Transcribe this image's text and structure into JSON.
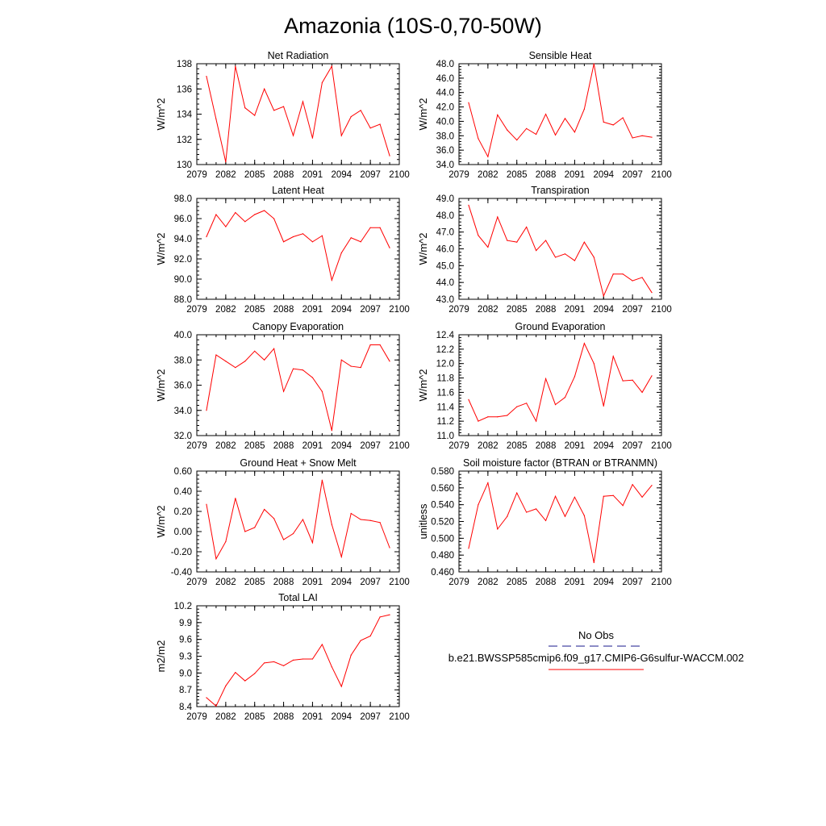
{
  "figure": {
    "title": "Amazonia (10S-0,70-50W)",
    "legend": {
      "entries": [
        {
          "label": "No Obs",
          "color": "#1a1a8c",
          "style": "dashed"
        },
        {
          "label": "b.e21.BWSSP585cmip6.f09_g17.CMIP6-G6sulfur-WACCM.002",
          "color": "#ff0000",
          "style": "solid"
        }
      ]
    }
  },
  "chart_data": [
    {
      "type": "line",
      "title": "Net Radiation",
      "ylabel": "W/m^2",
      "xlim": [
        2079,
        2100
      ],
      "xticks": [
        "2079",
        "2082",
        "2085",
        "2088",
        "2091",
        "2094",
        "2097",
        "2100"
      ],
      "ylim": [
        130,
        138
      ],
      "yticks": [
        "130",
        "132",
        "134",
        "136",
        "138"
      ],
      "x": [
        2080,
        2081,
        2082,
        2083,
        2084,
        2085,
        2086,
        2087,
        2088,
        2089,
        2090,
        2091,
        2092,
        2093,
        2094,
        2095,
        2096,
        2097,
        2098,
        2099
      ],
      "series": [
        {
          "name": "b.e21.BWSSP585cmip6.f09_g17.CMIP6-G6sulfur-WACCM.002",
          "color": "#ff0000",
          "values": [
            137.0,
            133.6,
            130.2,
            137.8,
            134.5,
            133.9,
            136.0,
            134.3,
            134.6,
            132.3,
            135.0,
            132.1,
            136.5,
            137.8,
            132.3,
            133.8,
            134.3,
            132.9,
            133.2,
            130.7
          ]
        }
      ]
    },
    {
      "type": "line",
      "title": "Sensible Heat",
      "ylabel": "W/m^2",
      "xlim": [
        2079,
        2100
      ],
      "xticks": [
        "2079",
        "2082",
        "2085",
        "2088",
        "2091",
        "2094",
        "2097",
        "2100"
      ],
      "ylim": [
        34,
        48
      ],
      "yticks": [
        "34.0",
        "36.0",
        "38.0",
        "40.0",
        "42.0",
        "44.0",
        "46.0",
        "48.0"
      ],
      "x": [
        2080,
        2081,
        2082,
        2083,
        2084,
        2085,
        2086,
        2087,
        2088,
        2089,
        2090,
        2091,
        2092,
        2093,
        2094,
        2095,
        2096,
        2097,
        2098,
        2099
      ],
      "series": [
        {
          "name": "b.e21.BWSSP585cmip6.f09_g17.CMIP6-G6sulfur-WACCM.002",
          "color": "#ff0000",
          "values": [
            42.6,
            37.6,
            35.1,
            40.9,
            38.8,
            37.4,
            39.0,
            38.2,
            41.0,
            38.1,
            40.4,
            38.5,
            41.7,
            48.0,
            39.9,
            39.5,
            40.5,
            37.7,
            38.0,
            37.8
          ]
        }
      ]
    },
    {
      "type": "line",
      "title": "Latent Heat",
      "ylabel": "W/m^2",
      "xlim": [
        2079,
        2100
      ],
      "xticks": [
        "2079",
        "2082",
        "2085",
        "2088",
        "2091",
        "2094",
        "2097",
        "2100"
      ],
      "ylim": [
        88,
        98
      ],
      "yticks": [
        "88.0",
        "90.0",
        "92.0",
        "94.0",
        "96.0",
        "98.0"
      ],
      "x": [
        2080,
        2081,
        2082,
        2083,
        2084,
        2085,
        2086,
        2087,
        2088,
        2089,
        2090,
        2091,
        2092,
        2093,
        2094,
        2095,
        2096,
        2097,
        2098,
        2099
      ],
      "series": [
        {
          "name": "b.e21.BWSSP585cmip6.f09_g17.CMIP6-G6sulfur-WACCM.002",
          "color": "#ff0000",
          "values": [
            94.2,
            96.4,
            95.2,
            96.6,
            95.7,
            96.4,
            96.8,
            96.0,
            93.7,
            94.2,
            94.5,
            93.7,
            94.3,
            89.9,
            92.6,
            94.1,
            93.7,
            95.1,
            95.1,
            93.1
          ]
        }
      ]
    },
    {
      "type": "line",
      "title": "Transpiration",
      "ylabel": "W/m^2",
      "xlim": [
        2079,
        2100
      ],
      "xticks": [
        "2079",
        "2082",
        "2085",
        "2088",
        "2091",
        "2094",
        "2097",
        "2100"
      ],
      "ylim": [
        43,
        49
      ],
      "yticks": [
        "43.0",
        "44.0",
        "45.0",
        "46.0",
        "47.0",
        "48.0",
        "49.0"
      ],
      "x": [
        2080,
        2081,
        2082,
        2083,
        2084,
        2085,
        2086,
        2087,
        2088,
        2089,
        2090,
        2091,
        2092,
        2093,
        2094,
        2095,
        2096,
        2097,
        2098,
        2099
      ],
      "series": [
        {
          "name": "b.e21.BWSSP585cmip6.f09_g17.CMIP6-G6sulfur-WACCM.002",
          "color": "#ff0000",
          "values": [
            48.6,
            46.8,
            46.1,
            47.9,
            46.5,
            46.4,
            47.3,
            45.9,
            46.5,
            45.5,
            45.7,
            45.3,
            46.4,
            45.5,
            43.2,
            44.5,
            44.5,
            44.1,
            44.3,
            43.4
          ]
        }
      ]
    },
    {
      "type": "line",
      "title": "Canopy Evaporation",
      "ylabel": "W/m^2",
      "xlim": [
        2079,
        2100
      ],
      "xticks": [
        "2079",
        "2082",
        "2085",
        "2088",
        "2091",
        "2094",
        "2097",
        "2100"
      ],
      "ylim": [
        32,
        40
      ],
      "yticks": [
        "32.0",
        "34.0",
        "36.0",
        "38.0",
        "40.0"
      ],
      "x": [
        2080,
        2081,
        2082,
        2083,
        2084,
        2085,
        2086,
        2087,
        2088,
        2089,
        2090,
        2091,
        2092,
        2093,
        2094,
        2095,
        2096,
        2097,
        2098,
        2099
      ],
      "series": [
        {
          "name": "b.e21.BWSSP585cmip6.f09_g17.CMIP6-G6sulfur-WACCM.002",
          "color": "#ff0000",
          "values": [
            34.0,
            38.4,
            37.9,
            37.4,
            37.9,
            38.7,
            38.0,
            38.9,
            35.5,
            37.3,
            37.2,
            36.6,
            35.5,
            32.4,
            38.0,
            37.5,
            37.4,
            39.2,
            39.2,
            37.9
          ]
        }
      ]
    },
    {
      "type": "line",
      "title": "Ground Evaporation",
      "ylabel": "W/m^2",
      "xlim": [
        2079,
        2100
      ],
      "xticks": [
        "2079",
        "2082",
        "2085",
        "2088",
        "2091",
        "2094",
        "2097",
        "2100"
      ],
      "ylim": [
        11.0,
        12.4
      ],
      "yticks": [
        "11.0",
        "11.2",
        "11.4",
        "11.6",
        "11.8",
        "12.0",
        "12.2",
        "12.4"
      ],
      "x": [
        2080,
        2081,
        2082,
        2083,
        2084,
        2085,
        2086,
        2087,
        2088,
        2089,
        2090,
        2091,
        2092,
        2093,
        2094,
        2095,
        2096,
        2097,
        2098,
        2099
      ],
      "series": [
        {
          "name": "b.e21.BWSSP585cmip6.f09_g17.CMIP6-G6sulfur-WACCM.002",
          "color": "#ff0000",
          "values": [
            11.5,
            11.2,
            11.26,
            11.26,
            11.28,
            11.4,
            11.45,
            11.2,
            11.79,
            11.43,
            11.53,
            11.82,
            12.28,
            12.0,
            11.41,
            12.1,
            11.76,
            11.77,
            11.6,
            11.83
          ]
        }
      ]
    },
    {
      "type": "line",
      "title": "Ground Heat + Snow Melt",
      "ylabel": "W/m^2",
      "xlim": [
        2079,
        2100
      ],
      "xticks": [
        "2079",
        "2082",
        "2085",
        "2088",
        "2091",
        "2094",
        "2097",
        "2100"
      ],
      "ylim": [
        -0.4,
        0.6
      ],
      "yticks": [
        "-0.40",
        "-0.20",
        "0.00",
        "0.20",
        "0.40",
        "0.60"
      ],
      "x": [
        2080,
        2081,
        2082,
        2083,
        2084,
        2085,
        2086,
        2087,
        2088,
        2089,
        2090,
        2091,
        2092,
        2093,
        2094,
        2095,
        2096,
        2097,
        2098,
        2099
      ],
      "series": [
        {
          "name": "b.e21.BWSSP585cmip6.f09_g17.CMIP6-G6sulfur-WACCM.002",
          "color": "#ff0000",
          "values": [
            0.27,
            -0.27,
            -0.1,
            0.33,
            0.0,
            0.04,
            0.22,
            0.13,
            -0.08,
            -0.02,
            0.12,
            -0.11,
            0.51,
            0.07,
            -0.25,
            0.18,
            0.12,
            0.11,
            0.09,
            -0.16
          ]
        }
      ]
    },
    {
      "type": "line",
      "title": "Soil moisture factor (BTRAN or BTRANMN)",
      "ylabel": "unitless",
      "xlim": [
        2079,
        2100
      ],
      "xticks": [
        "2079",
        "2082",
        "2085",
        "2088",
        "2091",
        "2094",
        "2097",
        "2100"
      ],
      "ylim": [
        0.46,
        0.58
      ],
      "yticks": [
        "0.460",
        "0.480",
        "0.500",
        "0.520",
        "0.540",
        "0.560",
        "0.580"
      ],
      "x": [
        2080,
        2081,
        2082,
        2083,
        2084,
        2085,
        2086,
        2087,
        2088,
        2089,
        2090,
        2091,
        2092,
        2093,
        2094,
        2095,
        2096,
        2097,
        2098,
        2099
      ],
      "series": [
        {
          "name": "b.e21.BWSSP585cmip6.f09_g17.CMIP6-G6sulfur-WACCM.002",
          "color": "#ff0000",
          "values": [
            0.488,
            0.54,
            0.566,
            0.511,
            0.526,
            0.554,
            0.531,
            0.535,
            0.521,
            0.55,
            0.526,
            0.549,
            0.527,
            0.471,
            0.55,
            0.551,
            0.539,
            0.564,
            0.549,
            0.563
          ]
        }
      ]
    },
    {
      "type": "line",
      "title": "Total LAI",
      "ylabel": "m2/m2",
      "xlim": [
        2079,
        2100
      ],
      "xticks": [
        "2079",
        "2082",
        "2085",
        "2088",
        "2091",
        "2094",
        "2097",
        "2100"
      ],
      "ylim": [
        8.4,
        10.2
      ],
      "yticks": [
        "8.4",
        "8.7",
        "9.0",
        "9.3",
        "9.6",
        "9.9",
        "10.2"
      ],
      "x": [
        2080,
        2081,
        2082,
        2083,
        2084,
        2085,
        2086,
        2087,
        2088,
        2089,
        2090,
        2091,
        2092,
        2093,
        2094,
        2095,
        2096,
        2097,
        2098,
        2099
      ],
      "series": [
        {
          "name": "b.e21.BWSSP585cmip6.f09_g17.CMIP6-G6sulfur-WACCM.002",
          "color": "#ff0000",
          "values": [
            8.56,
            8.41,
            8.77,
            9.01,
            8.86,
            8.99,
            9.18,
            9.2,
            9.13,
            9.23,
            9.25,
            9.25,
            9.51,
            9.11,
            8.76,
            9.32,
            9.58,
            9.66,
            10.0,
            10.04
          ]
        }
      ]
    }
  ]
}
